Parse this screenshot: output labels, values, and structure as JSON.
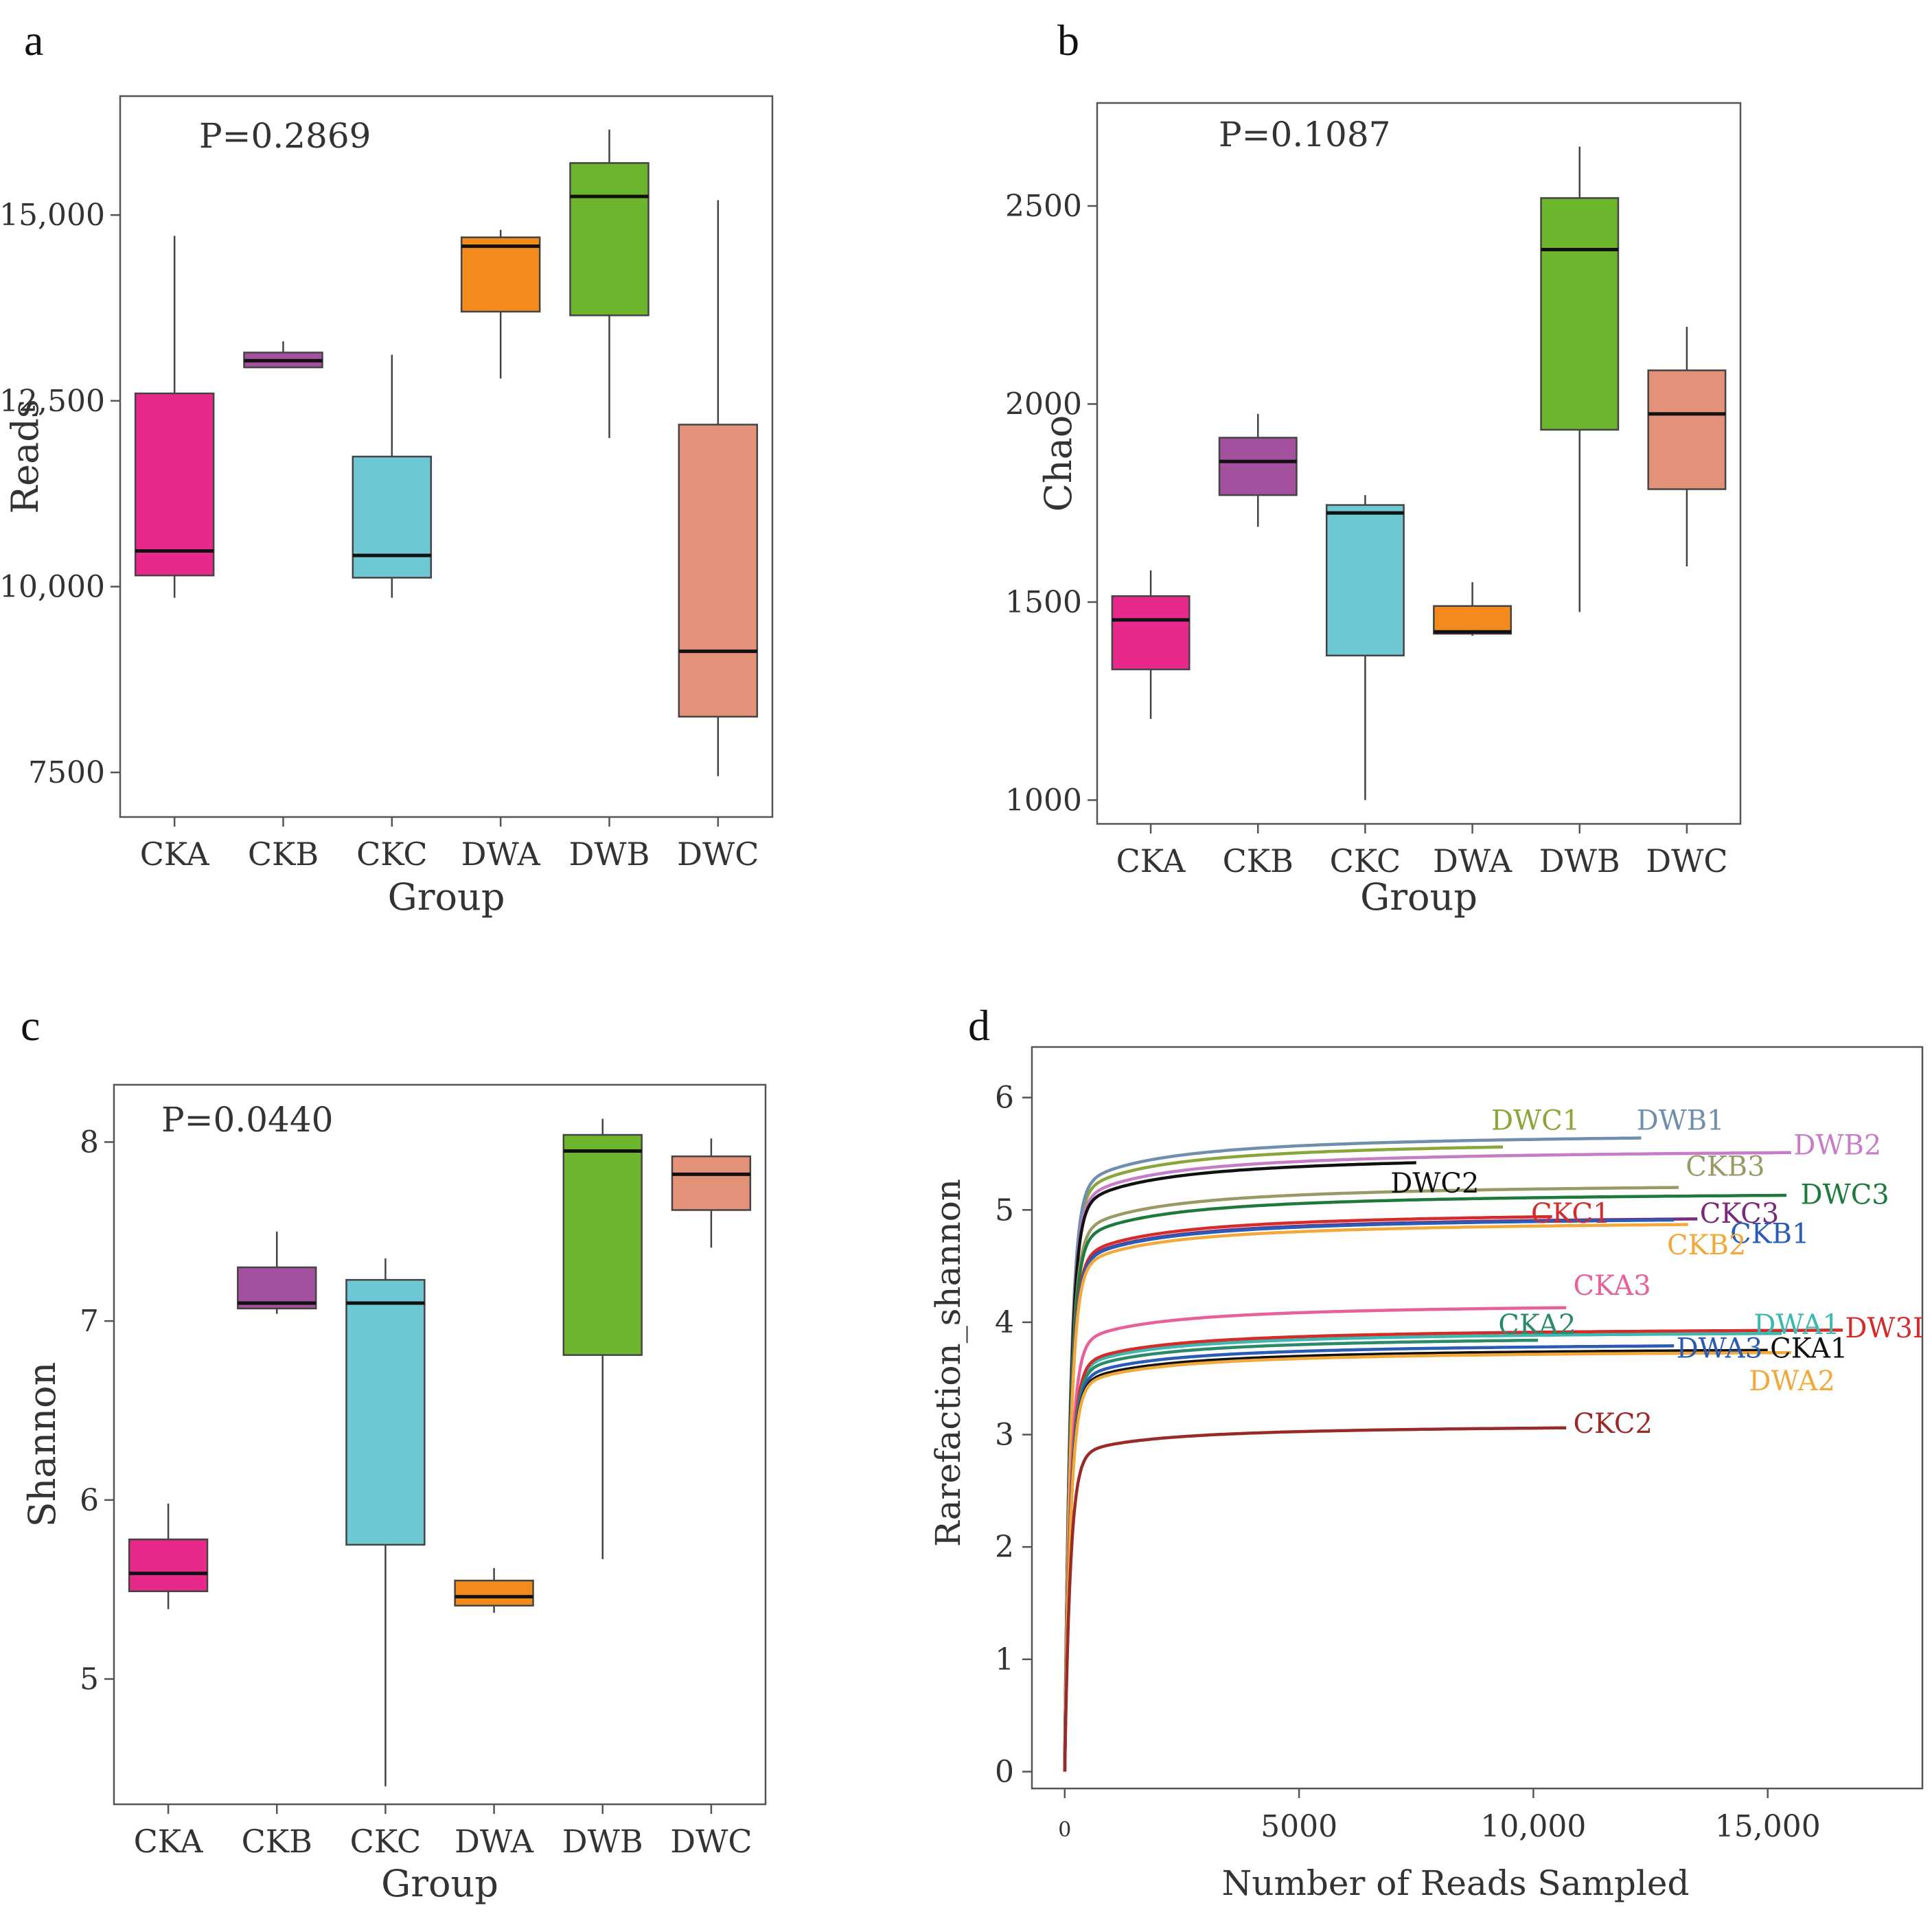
{
  "figure": {
    "panels": [
      {
        "id": "a",
        "letter": "a"
      },
      {
        "id": "b",
        "letter": "b"
      },
      {
        "id": "c",
        "letter": "c"
      },
      {
        "id": "d",
        "letter": "d"
      }
    ]
  },
  "chart_data": [
    {
      "panel": "a",
      "type": "box",
      "title": "",
      "annotation": "P=0.2869",
      "xlabel": "Group",
      "ylabel": "Reads",
      "ylim": [
        6900,
        16600
      ],
      "yticks": [
        7500,
        10000,
        12500,
        15000
      ],
      "ytick_labels": [
        "7500",
        "10,000",
        "12,500",
        "15,000"
      ],
      "categories": [
        "CKA",
        "CKB",
        "CKC",
        "DWA",
        "DWB",
        "DWC"
      ],
      "colors": [
        "#e8288b",
        "#a3509e",
        "#6ec8d4",
        "#f28a1c",
        "#6cb52d",
        "#e39178"
      ],
      "boxes": [
        {
          "group": "CKA",
          "min": 9850,
          "q1": 10150,
          "median": 10480,
          "q3": 12600,
          "max": 14720
        },
        {
          "group": "CKB",
          "min": 12950,
          "q1": 12950,
          "median": 13040,
          "q3": 13150,
          "max": 13300
        },
        {
          "group": "CKC",
          "min": 9850,
          "q1": 10120,
          "median": 10420,
          "q3": 11750,
          "max": 13120
        },
        {
          "group": "DWA",
          "min": 12800,
          "q1": 13700,
          "median": 14580,
          "q3": 14700,
          "max": 14800
        },
        {
          "group": "DWB",
          "min": 12000,
          "q1": 13650,
          "median": 15250,
          "q3": 15700,
          "max": 16150
        },
        {
          "group": "DWC",
          "min": 7450,
          "q1": 8250,
          "median": 9130,
          "q3": 12180,
          "max": 15200
        }
      ]
    },
    {
      "panel": "b",
      "type": "box",
      "title": "",
      "annotation": "P=0.1087",
      "xlabel": "Group",
      "ylabel": "Chao",
      "ylim": [
        940,
        2760
      ],
      "yticks": [
        1000,
        1500,
        2000,
        2500
      ],
      "ytick_labels": [
        "1000",
        "1500",
        "2000",
        "2500"
      ],
      "categories": [
        "CKA",
        "CKB",
        "CKC",
        "DWA",
        "DWB",
        "DWC"
      ],
      "colors": [
        "#e8288b",
        "#a3509e",
        "#6ec8d4",
        "#f28a1c",
        "#6cb52d",
        "#e39178"
      ],
      "boxes": [
        {
          "group": "CKA",
          "min": 1205,
          "q1": 1330,
          "median": 1455,
          "q3": 1515,
          "max": 1580
        },
        {
          "group": "CKB",
          "min": 1690,
          "q1": 1770,
          "median": 1855,
          "q3": 1915,
          "max": 1975
        },
        {
          "group": "CKC",
          "min": 1000,
          "q1": 1365,
          "median": 1725,
          "q3": 1745,
          "max": 1770
        },
        {
          "group": "DWA",
          "min": 1415,
          "q1": 1420,
          "median": 1425,
          "q3": 1490,
          "max": 1550
        },
        {
          "group": "DWB",
          "min": 1475,
          "q1": 1935,
          "median": 2390,
          "q3": 2520,
          "max": 2650
        },
        {
          "group": "DWC",
          "min": 1590,
          "q1": 1785,
          "median": 1975,
          "q3": 2085,
          "max": 2195
        }
      ]
    },
    {
      "panel": "c",
      "type": "box",
      "title": "",
      "annotation": "P=0.0440",
      "xlabel": "Group",
      "ylabel": "Shannon",
      "ylim": [
        4.3,
        8.32
      ],
      "yticks": [
        5,
        6,
        7,
        8
      ],
      "ytick_labels": [
        "5",
        "6",
        "7",
        "8"
      ],
      "categories": [
        "CKA",
        "CKB",
        "CKC",
        "DWA",
        "DWB",
        "DWC"
      ],
      "colors": [
        "#e8288b",
        "#a3509e",
        "#6ec8d4",
        "#f28a1c",
        "#6cb52d",
        "#e39178"
      ],
      "boxes": [
        {
          "group": "CKA",
          "min": 5.39,
          "q1": 5.49,
          "median": 5.59,
          "q3": 5.78,
          "max": 5.98
        },
        {
          "group": "CKB",
          "min": 7.04,
          "q1": 7.07,
          "median": 7.1,
          "q3": 7.3,
          "max": 7.5
        },
        {
          "group": "CKC",
          "min": 4.4,
          "q1": 5.75,
          "median": 7.1,
          "q3": 7.23,
          "max": 7.35
        },
        {
          "group": "DWA",
          "min": 5.37,
          "q1": 5.41,
          "median": 5.46,
          "q3": 5.55,
          "max": 5.62
        },
        {
          "group": "DWB",
          "min": 5.67,
          "q1": 6.81,
          "median": 7.95,
          "q3": 8.04,
          "max": 8.13
        },
        {
          "group": "DWC",
          "min": 7.41,
          "q1": 7.62,
          "median": 7.82,
          "q3": 7.92,
          "max": 8.02
        }
      ]
    },
    {
      "panel": "d",
      "type": "line",
      "title": "",
      "xlabel": "Number of Reads Sampled",
      "ylabel": "Rarefaction_shannon",
      "xlim": [
        -700,
        18300
      ],
      "ylim": [
        -0.15,
        6.45
      ],
      "xticks": [
        0,
        5000,
        10000,
        15000
      ],
      "xtick_labels": [
        "0",
        "5000",
        "10,000",
        "15,000"
      ],
      "yticks": [
        0,
        1,
        2,
        3,
        4,
        5,
        6
      ],
      "ytick_labels": [
        "0",
        "1",
        "2",
        "3",
        "4",
        "5",
        "6"
      ],
      "curve_model": "y = asymptote * (1 - exp(-x/120)) * (0.9 + 0.1 * x/(x+1500))",
      "series": [
        {
          "name": "DWC1",
          "color": "#8aa63a",
          "final_reads": 9350,
          "final_value": 5.56,
          "label": "DWC1",
          "label_anchor": {
            "x": 9100,
            "y": 5.8
          }
        },
        {
          "name": "DWB1",
          "color": "#6f8fad",
          "final_reads": 12300,
          "final_value": 5.64,
          "label": "DWB1",
          "label_anchor": {
            "x": 12200,
            "y": 5.8
          }
        },
        {
          "name": "DWB2",
          "color": "#c77cc7",
          "final_reads": 15500,
          "final_value": 5.51,
          "label": "DWB2",
          "label_anchor": {
            "x": 15550,
            "y": 5.58
          }
        },
        {
          "name": "DWC2",
          "color": "#111111",
          "final_reads": 7500,
          "final_value": 5.42,
          "label": "DWC2",
          "label_anchor": {
            "x": 6950,
            "y": 5.24
          }
        },
        {
          "name": "CKB3",
          "color": "#9a9a66",
          "final_reads": 13100,
          "final_value": 5.2,
          "label": "CKB3",
          "label_anchor": {
            "x": 13250,
            "y": 5.39
          }
        },
        {
          "name": "DWC3",
          "color": "#1e7a3c",
          "final_reads": 15400,
          "final_value": 5.13,
          "label": "DWC3",
          "label_anchor": {
            "x": 15700,
            "y": 5.14
          }
        },
        {
          "name": "CKC1",
          "color": "#d42b2b",
          "final_reads": 10400,
          "final_value": 4.94,
          "label": "CKC1",
          "label_anchor": {
            "x": 9950,
            "y": 4.97
          }
        },
        {
          "name": "CKC3",
          "color": "#7a2a7a",
          "final_reads": 13500,
          "final_value": 4.92,
          "label": "CKC3",
          "label_anchor": {
            "x": 13550,
            "y": 4.97
          }
        },
        {
          "name": "CKB1",
          "color": "#2a5cb5",
          "final_reads": 13000,
          "final_value": 4.91,
          "label": "CKB1",
          "label_anchor": {
            "x": 14200,
            "y": 4.79
          }
        },
        {
          "name": "CKB2",
          "color": "#f2a93b",
          "final_reads": 13300,
          "final_value": 4.87,
          "label": "CKB2",
          "label_anchor": {
            "x": 12850,
            "y": 4.69
          }
        },
        {
          "name": "CKA3",
          "color": "#e8609a",
          "final_reads": 10700,
          "final_value": 4.13,
          "label": "CKA3",
          "label_anchor": {
            "x": 10850,
            "y": 4.33
          }
        },
        {
          "name": "DWA1",
          "color": "#3bb8b0",
          "final_reads": 15300,
          "final_value": 3.9,
          "label": "DWA1",
          "label_anchor": {
            "x": 14700,
            "y": 3.98
          }
        },
        {
          "name": "DW3I",
          "color": "#d42b2b",
          "final_reads": 16600,
          "final_value": 3.93,
          "label": "DW3I",
          "label_anchor": {
            "x": 16650,
            "y": 3.95
          }
        },
        {
          "name": "CKA2",
          "color": "#2a8a6a",
          "final_reads": 10100,
          "final_value": 3.84,
          "label": "CKA2",
          "label_anchor": {
            "x": 9250,
            "y": 3.98
          }
        },
        {
          "name": "DWA3",
          "color": "#2a5cb5",
          "final_reads": 13000,
          "final_value": 3.79,
          "label": "DWA3",
          "label_anchor": {
            "x": 13050,
            "y": 3.77
          }
        },
        {
          "name": "CKA1",
          "color": "#111111",
          "final_reads": 15000,
          "final_value": 3.75,
          "label": "CKA1",
          "label_anchor": {
            "x": 15050,
            "y": 3.77
          }
        },
        {
          "name": "DWA2",
          "color": "#f2a93b",
          "final_reads": 15500,
          "final_value": 3.73,
          "label": "DWA2",
          "label_anchor": {
            "x": 14600,
            "y": 3.48
          }
        },
        {
          "name": "CKC2",
          "color": "#9a2a2a",
          "final_reads": 10700,
          "final_value": 3.06,
          "label": "CKC2",
          "label_anchor": {
            "x": 10850,
            "y": 3.1
          }
        }
      ]
    }
  ]
}
